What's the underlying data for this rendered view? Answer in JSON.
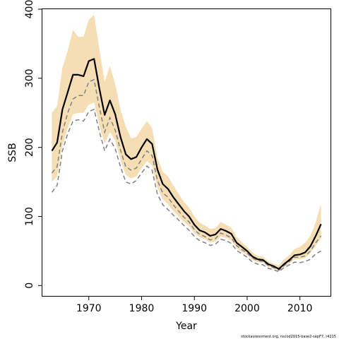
{
  "chart_data": {
    "type": "line",
    "title": "",
    "xlabel": "Year",
    "ylabel": "SSB",
    "xlim": [
      1961.2,
      2015.8
    ],
    "ylim": [
      -15,
      400
    ],
    "x_ticks": [
      1970,
      1980,
      1990,
      2000,
      2010
    ],
    "y_ticks": [
      0,
      100,
      200,
      300,
      400
    ],
    "grid": false,
    "legend": "none",
    "footnote": "stockassessment.org, nscod2015-base2-sepF7, r4215",
    "colors": {
      "band": "#f5deb3",
      "main": "#000000",
      "dashed": "#808080"
    },
    "x": [
      1963,
      1964,
      1965,
      1966,
      1967,
      1968,
      1969,
      1970,
      1971,
      1972,
      1973,
      1974,
      1975,
      1976,
      1977,
      1978,
      1979,
      1980,
      1981,
      1982,
      1983,
      1984,
      1985,
      1986,
      1987,
      1988,
      1989,
      1990,
      1991,
      1992,
      1993,
      1994,
      1995,
      1996,
      1997,
      1998,
      1999,
      2000,
      2001,
      2002,
      2003,
      2004,
      2005,
      2006,
      2007,
      2008,
      2009,
      2010,
      2011,
      2012,
      2013,
      2014
    ],
    "series": [
      {
        "role": "ssb",
        "values": [
          195,
          207,
          255,
          280,
          305,
          305,
          303,
          325,
          328,
          285,
          247,
          268,
          248,
          215,
          190,
          183,
          186,
          200,
          212,
          205,
          168,
          147,
          140,
          128,
          118,
          108,
          100,
          88,
          80,
          77,
          72,
          74,
          82,
          79,
          75,
          62,
          56,
          50,
          42,
          38,
          37,
          31,
          28,
          24,
          31,
          37,
          44,
          45,
          48,
          57,
          72,
          89
        ]
      },
      {
        "role": "band-upper",
        "values": [
          250,
          260,
          315,
          340,
          370,
          360,
          360,
          385,
          392,
          342,
          295,
          318,
          292,
          255,
          230,
          213,
          215,
          227,
          238,
          228,
          185,
          165,
          158,
          145,
          133,
          121,
          113,
          100,
          91,
          87,
          82,
          83,
          92,
          88,
          84,
          70,
          63,
          56,
          48,
          43,
          42,
          35,
          32,
          29,
          38,
          44,
          53,
          56,
          62,
          72,
          92,
          118
        ]
      },
      {
        "role": "band-lower",
        "values": [
          150,
          158,
          202,
          228,
          248,
          250,
          250,
          262,
          265,
          232,
          205,
          222,
          210,
          182,
          160,
          155,
          158,
          170,
          180,
          174,
          142,
          125,
          118,
          108,
          100,
          92,
          86,
          76,
          70,
          67,
          62,
          64,
          71,
          69,
          65,
          54,
          49,
          44,
          37,
          34,
          33,
          27,
          25,
          21,
          27,
          32,
          38,
          38,
          40,
          47,
          58,
          68
        ]
      },
      {
        "role": "dashed-1",
        "values": [
          163,
          172,
          222,
          250,
          270,
          275,
          275,
          295,
          298,
          258,
          222,
          243,
          225,
          196,
          172,
          167,
          170,
          183,
          195,
          188,
          152,
          134,
          128,
          117,
          108,
          99,
          92,
          81,
          74,
          71,
          66,
          68,
          76,
          73,
          69,
          58,
          52,
          47,
          40,
          36,
          35,
          29,
          26,
          22,
          29,
          35,
          41,
          41,
          43,
          50,
          62,
          72
        ]
      },
      {
        "role": "dashed-2",
        "values": [
          135,
          145,
          195,
          220,
          238,
          240,
          238,
          252,
          255,
          223,
          195,
          212,
          198,
          172,
          150,
          147,
          152,
          163,
          173,
          167,
          132,
          117,
          110,
          102,
          95,
          87,
          80,
          71,
          65,
          62,
          58,
          60,
          67,
          65,
          61,
          51,
          46,
          41,
          34,
          31,
          30,
          25,
          23,
          20,
          26,
          30,
          34,
          33,
          35,
          38,
          46,
          50
        ]
      }
    ]
  }
}
